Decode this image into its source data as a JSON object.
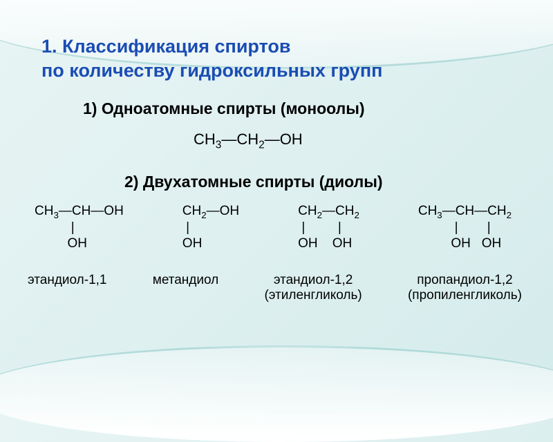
{
  "colors": {
    "title_color": "#1a4db3",
    "text_color": "#000000",
    "bg_gradient_start": "#e8f4f4",
    "bg_gradient_end": "#d4ebeb",
    "curve_color": "rgba(100,180,180,0.4)"
  },
  "typography": {
    "title_fontsize": 27,
    "heading_fontsize": 23,
    "formula_fontsize": 22,
    "diol_formula_fontsize": 19,
    "name_fontsize": 19,
    "font_family": "Arial"
  },
  "title_line1": "1. Классификация спиртов",
  "title_line2": "по количеству гидроксильных групп",
  "section1": {
    "heading": "1) Одноатомные спирты (моноолы)",
    "formula_html": "CH<sub>3</sub>—CH<sub>2</sub>—OH"
  },
  "section2": {
    "heading": "2) Двухатомные спирты (диолы)",
    "compounds": [
      {
        "formula_l1_html": "CH<sub>3</sub>—CH—OH",
        "formula_l2_html": "&nbsp;&nbsp;&nbsp;&nbsp;&nbsp;&nbsp;&nbsp;&nbsp;&nbsp;&nbsp;|",
        "formula_l3_html": "&nbsp;&nbsp;&nbsp;&nbsp;&nbsp;&nbsp;&nbsp;&nbsp;&nbsp;OH",
        "name": "этандиол-1,1",
        "alt_name": ""
      },
      {
        "formula_l1_html": "CH<sub>2</sub>—OH",
        "formula_l2_html": "&nbsp;|",
        "formula_l3_html": "OH",
        "name": "метандиол",
        "alt_name": ""
      },
      {
        "formula_l1_html": "CH<sub>2</sub>—CH<sub>2</sub>",
        "formula_l2_html": "&nbsp;|&nbsp;&nbsp;&nbsp;&nbsp;&nbsp;&nbsp;&nbsp;&nbsp;&nbsp;|",
        "formula_l3_html": "OH&nbsp;&nbsp;&nbsp;&nbsp;OH",
        "name": "этандиол-1,2",
        "alt_name": "(этиленгликоль)"
      },
      {
        "formula_l1_html": "CH<sub>3</sub>—CH—CH<sub>2</sub>",
        "formula_l2_html": "&nbsp;&nbsp;&nbsp;&nbsp;&nbsp;&nbsp;&nbsp;&nbsp;&nbsp;&nbsp;|&nbsp;&nbsp;&nbsp;&nbsp;&nbsp;&nbsp;&nbsp;&nbsp;|",
        "formula_l3_html": "&nbsp;&nbsp;&nbsp;&nbsp;&nbsp;&nbsp;&nbsp;&nbsp;&nbsp;OH&nbsp;&nbsp;&nbsp;OH",
        "name": "пропандиол-1,2",
        "alt_name": "(пропиленгликоль)"
      }
    ]
  }
}
